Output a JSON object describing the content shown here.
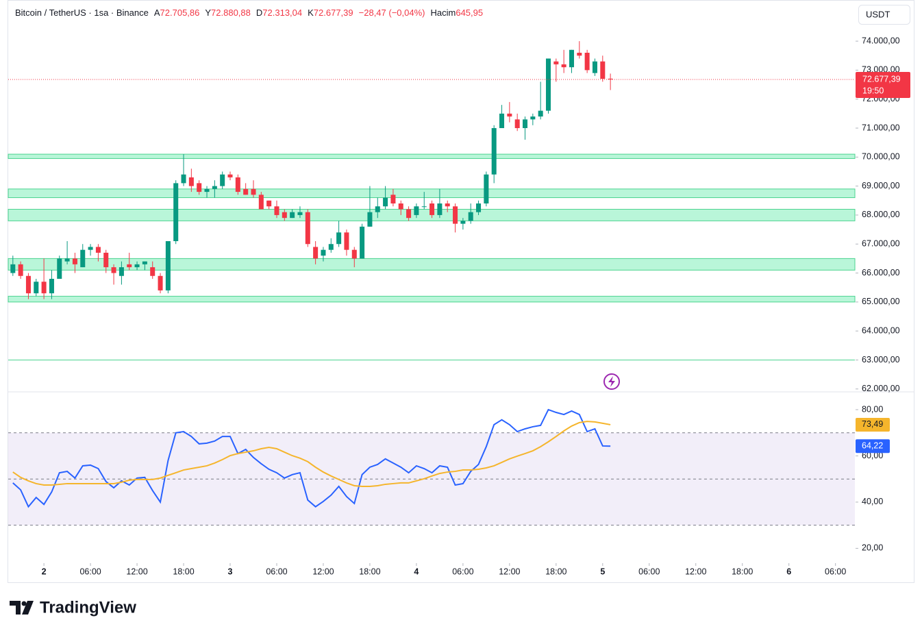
{
  "header": {
    "symbol": "Bitcoin / TetherUS · 1sa · Binance",
    "open_label": "A",
    "open": "72.705,86",
    "high_label": "Y",
    "high": "72.880,88",
    "low_label": "D",
    "low": "72.313,04",
    "close_label": "K",
    "close": "72.677,39",
    "change": "−28,47 (−0,04%)",
    "volume_label": "Hacim",
    "volume": "645,95"
  },
  "currency": "USDT",
  "logo": "TradingView",
  "chart_data": [
    {
      "type": "candlestick",
      "up_color": "#089981",
      "down_color": "#f23645",
      "x": [
        -4,
        -3,
        -2,
        -1,
        0,
        1,
        2,
        3,
        4,
        5,
        6,
        7,
        8,
        9,
        10,
        11,
        12,
        13,
        14,
        15,
        16,
        17,
        18,
        19,
        20,
        21,
        22,
        23,
        24,
        25,
        26,
        27,
        28,
        29,
        30,
        31,
        32,
        33,
        34,
        35,
        36,
        37,
        38,
        39,
        40,
        41,
        42,
        43,
        44,
        45,
        46,
        47,
        48,
        49,
        50,
        51,
        52,
        53,
        54,
        55,
        56,
        57,
        58,
        59,
        60,
        61,
        62,
        63,
        64,
        65,
        66,
        67,
        68,
        69,
        70,
        71,
        72,
        73
      ],
      "open": [
        66000,
        66300,
        65900,
        65300,
        65700,
        65300,
        65800,
        66400,
        66500,
        66200,
        66800,
        66900,
        66700,
        66200,
        65900,
        66300,
        66200,
        66300,
        66200,
        65900,
        65400,
        67100,
        69100,
        69300,
        69100,
        68800,
        68900,
        69000,
        69400,
        69300,
        68900,
        68900,
        68700,
        68500,
        68300,
        68100,
        67900,
        68000,
        68100,
        66900,
        66600,
        66800,
        67000,
        67400,
        66800,
        66500,
        67600,
        68100,
        68300,
        68700,
        68400,
        68200,
        68000,
        68300,
        68400,
        68000,
        68400,
        68300,
        67700,
        67800,
        68100,
        68400,
        69400,
        71000,
        71500,
        71300,
        71000,
        71300,
        71400,
        71600,
        73300,
        73200,
        73100,
        73600,
        73600,
        72900,
        73300,
        72705.86
      ],
      "high": [
        66600,
        66400,
        66000,
        65800,
        66500,
        66100,
        66600,
        67100,
        66700,
        67000,
        67000,
        67000,
        66800,
        66300,
        66400,
        66700,
        66400,
        66400,
        66400,
        66000,
        67100,
        69200,
        70100,
        69600,
        69200,
        69000,
        69200,
        69500,
        69500,
        69400,
        69100,
        69200,
        68800,
        68500,
        68500,
        68200,
        68200,
        68300,
        68200,
        67100,
        66900,
        67200,
        67800,
        67500,
        66900,
        67700,
        69000,
        68600,
        69000,
        68900,
        68500,
        68300,
        68400,
        68800,
        68500,
        68900,
        68500,
        68400,
        67900,
        68400,
        68500,
        69500,
        71100,
        71800,
        71900,
        71500,
        71400,
        71500,
        72600,
        73400,
        73400,
        73700,
        73700,
        74000,
        73700,
        73400,
        73500,
        72880.88
      ],
      "low": [
        65900,
        65800,
        65100,
        65200,
        65100,
        65100,
        65800,
        66300,
        66000,
        66200,
        66600,
        66400,
        66000,
        65600,
        65600,
        66100,
        66100,
        66100,
        65800,
        65300,
        65300,
        67000,
        69000,
        68800,
        68700,
        68600,
        68600,
        68900,
        69200,
        68700,
        68700,
        68600,
        68200,
        68200,
        67900,
        67800,
        67900,
        67900,
        66900,
        66300,
        66400,
        66700,
        66900,
        66600,
        66200,
        66500,
        67600,
        67900,
        68200,
        68300,
        68000,
        67800,
        67900,
        68200,
        67900,
        67900,
        68100,
        67400,
        67500,
        67700,
        68000,
        68300,
        69100,
        71000,
        71200,
        70900,
        70600,
        71100,
        71300,
        71500,
        72600,
        72900,
        72900,
        73400,
        72900,
        72800,
        72600,
        72313.04
      ],
      "close": [
        66300,
        65900,
        65300,
        65700,
        65300,
        65800,
        66500,
        66500,
        66300,
        66800,
        66900,
        66700,
        66200,
        66000,
        66200,
        66200,
        66300,
        66400,
        65900,
        65400,
        67100,
        69100,
        69400,
        69000,
        68800,
        68900,
        69000,
        69400,
        69300,
        68800,
        68700,
        68700,
        68200,
        68300,
        68000,
        67900,
        68100,
        68100,
        67000,
        66500,
        66800,
        67000,
        67400,
        66800,
        66500,
        67600,
        68100,
        68300,
        68600,
        68400,
        68200,
        67900,
        68300,
        68300,
        68000,
        68400,
        68300,
        67700,
        67800,
        68100,
        68400,
        69400,
        71000,
        71500,
        71400,
        71000,
        71300,
        71400,
        71600,
        73400,
        73200,
        73100,
        73700,
        73500,
        73000,
        73300,
        72700,
        72677.39
      ],
      "last_price_label": "72.677,39",
      "countdown": "19:50",
      "bands": [
        [
          69950,
          70100
        ],
        [
          68600,
          68900
        ],
        [
          67800,
          68200
        ],
        [
          66100,
          66500
        ],
        [
          65000,
          65200
        ]
      ],
      "band_color": "#b9f6d9",
      "levels": [
        63000
      ],
      "xlim": [
        -4.6,
        104.5
      ],
      "xticks": [
        {
          "value": 0,
          "label": "2"
        },
        {
          "value": 6,
          "label": "06:00"
        },
        {
          "value": 12,
          "label": "12:00"
        },
        {
          "value": 18,
          "label": "18:00"
        },
        {
          "value": 24,
          "label": "3"
        },
        {
          "value": 30,
          "label": "06:00"
        },
        {
          "value": 36,
          "label": "12:00"
        },
        {
          "value": 42,
          "label": "18:00"
        },
        {
          "value": 48,
          "label": "4"
        },
        {
          "value": 54,
          "label": "06:00"
        },
        {
          "value": 60,
          "label": "12:00"
        },
        {
          "value": 66,
          "label": "18:00"
        },
        {
          "value": 72,
          "label": "5"
        },
        {
          "value": 78,
          "label": "06:00"
        },
        {
          "value": 84,
          "label": "12:00"
        },
        {
          "value": 90,
          "label": "18:00"
        },
        {
          "value": 96,
          "label": "6"
        },
        {
          "value": 102,
          "label": "06:00"
        }
      ],
      "ylim": [
        61900,
        75420
      ],
      "yticks": [
        {
          "value": 62000,
          "label": "62.000,00"
        },
        {
          "value": 63000,
          "label": "63.000,00"
        },
        {
          "value": 64000,
          "label": "64.000,00"
        },
        {
          "value": 65000,
          "label": "65.000,00"
        },
        {
          "value": 66000,
          "label": "66.000,00"
        },
        {
          "value": 67000,
          "label": "67.000,00"
        },
        {
          "value": 68000,
          "label": "68.000,00"
        },
        {
          "value": 69000,
          "label": "69.000,00"
        },
        {
          "value": 70000,
          "label": "70.000,00"
        },
        {
          "value": 71000,
          "label": "71.000,00"
        },
        {
          "value": 72000,
          "label": "72.000,00"
        },
        {
          "value": 73000,
          "label": "73.000,00"
        },
        {
          "value": 74000,
          "label": "74.000,00"
        }
      ]
    },
    {
      "type": "line",
      "series": [
        {
          "color": "#2962ff",
          "last_label": "64,22",
          "values": [
            48.3,
            45.3,
            38,
            42,
            39,
            44.4,
            52.7,
            53.3,
            50.4,
            55.7,
            56,
            54.5,
            48.9,
            46.2,
            49.2,
            47.4,
            50.4,
            50.7,
            45,
            40,
            58,
            70,
            70.5,
            68.4,
            65.2,
            65.5,
            66.4,
            68.4,
            68.4,
            61,
            62.8,
            59.3,
            56.6,
            54.2,
            52.7,
            50.4,
            51.9,
            52.7,
            40.9,
            38,
            40.3,
            43,
            46.8,
            42.4,
            39.4,
            51.9,
            55.1,
            56.3,
            58.7,
            56.9,
            55.1,
            52.7,
            55.7,
            54.5,
            52.7,
            55.7,
            55.1,
            47.4,
            48,
            53.3,
            56.3,
            64,
            73.5,
            75.6,
            73.5,
            70.5,
            71.7,
            72.6,
            73.2,
            80,
            78.8,
            77.9,
            79.4,
            77.9,
            70.5,
            71.7,
            64.3,
            64.22
          ]
        },
        {
          "color": "#f5b52c",
          "last_label": "73,49",
          "values": [
            53,
            50.7,
            49.2,
            48,
            47.4,
            47.4,
            47.7,
            48,
            48,
            48,
            48,
            48,
            48,
            48,
            48.6,
            49.5,
            49.8,
            49.8,
            49.8,
            50.4,
            51.6,
            52.7,
            53.9,
            54.5,
            55.1,
            55.7,
            56.9,
            58.4,
            60.1,
            61,
            61.6,
            62.2,
            63.1,
            63.7,
            63.1,
            61.6,
            60.1,
            59,
            57.5,
            55.1,
            53,
            51.3,
            49.8,
            48.3,
            47.1,
            46.8,
            46.8,
            47.1,
            47.7,
            48,
            48.3,
            48.3,
            49.2,
            50.1,
            51.3,
            52.4,
            53,
            53.3,
            53.9,
            53.9,
            54.2,
            54.8,
            55.7,
            57.2,
            58.7,
            59.9,
            61,
            62.2,
            64,
            66.1,
            68.4,
            70.8,
            72.9,
            74.4,
            74.9,
            74.7,
            74.1,
            73.49
          ]
        }
      ],
      "levels": [
        70,
        50,
        30
      ],
      "band_color": "#7e57c2",
      "ylim": [
        13.6,
        87.7
      ],
      "yticks": [
        {
          "value": 20,
          "label": "20,00"
        },
        {
          "value": 40,
          "label": "40,00"
        },
        {
          "value": 60,
          "label": "60,00"
        },
        {
          "value": 80,
          "label": "80,00"
        }
      ]
    }
  ]
}
